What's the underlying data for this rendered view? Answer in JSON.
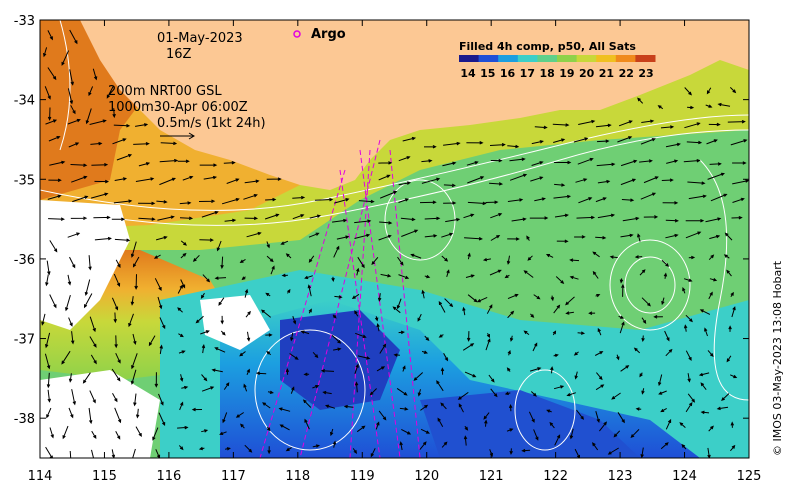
{
  "map": {
    "date": "01-May-2023",
    "hour": "16Z",
    "argo_label": "Argo",
    "current_line1": "200m  NRT00 GSL",
    "current_line2": "1000m30-Apr 06:00Z",
    "scale_label": "0.5m/s (1kt 24h)",
    "colorbar_title": "Filled 4h comp, p50, All Sats",
    "colorbar_ticks": [
      "14",
      "15",
      "16",
      "17",
      "18",
      "19",
      "20",
      "21",
      "22",
      "23"
    ],
    "credit": "© IMOS 03-May-2023 13:08 Hobart",
    "x_ticks": [
      "114",
      "115",
      "116",
      "117",
      "118",
      "119",
      "120",
      "121",
      "122",
      "123",
      "124",
      "125"
    ],
    "y_ticks": [
      "-33",
      "-34",
      "-35",
      "-36",
      "-37",
      "-38"
    ],
    "lon_range": [
      114,
      125
    ],
    "lat_range": [
      -38.5,
      -33
    ],
    "land_color": "#fcc894",
    "argo_color": "#e000e0",
    "colorbar_colors": [
      "#1a1a8c",
      "#1f4fd6",
      "#1c9fe0",
      "#3ccfc8",
      "#5fd08a",
      "#8fd24a",
      "#c8d83a",
      "#f0c020",
      "#f08a1c",
      "#c8401a"
    ]
  }
}
